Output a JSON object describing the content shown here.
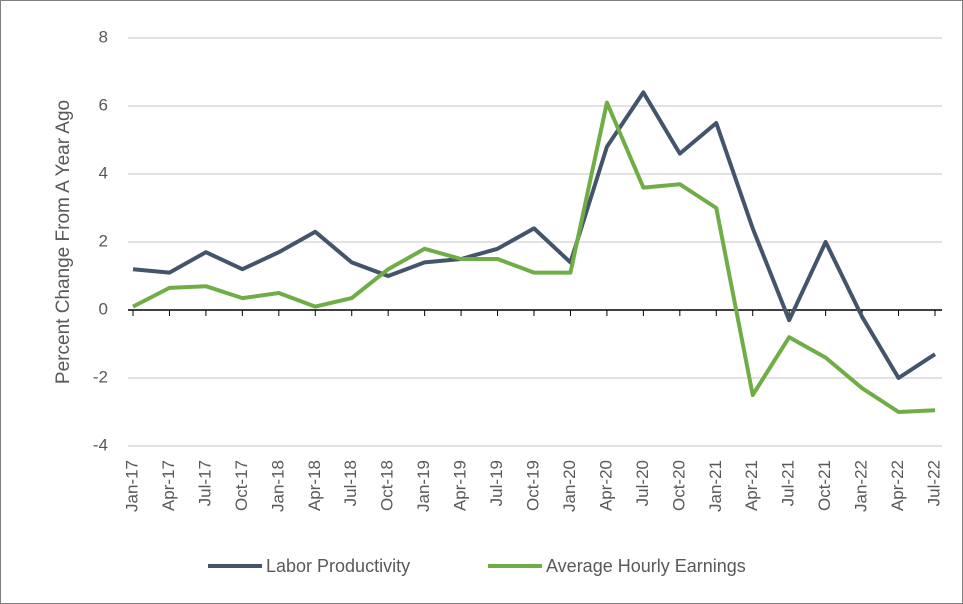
{
  "chart_data": {
    "type": "line",
    "y_label": "Percent Change From A Year Ago",
    "categories": [
      "Jan-17",
      "Apr-17",
      "Jul-17",
      "Oct-17",
      "Jan-18",
      "Apr-18",
      "Jul-18",
      "Oct-18",
      "Jan-19",
      "Apr-19",
      "Jul-19",
      "Oct-19",
      "Jan-20",
      "Apr-20",
      "Jul-20",
      "Oct-20",
      "Jan-21",
      "Apr-21",
      "Jul-21",
      "Oct-21",
      "Jan-22",
      "Apr-22",
      "Jul-22"
    ],
    "series": [
      {
        "name": "Labor Productivity",
        "color": "#44546a",
        "values": [
          1.2,
          1.1,
          1.7,
          1.2,
          1.7,
          2.3,
          1.4,
          1.0,
          1.4,
          1.5,
          1.8,
          2.4,
          1.4,
          4.8,
          6.4,
          4.6,
          5.5,
          2.4,
          -0.3,
          2.0,
          -0.2,
          -2.0,
          -1.3
        ]
      },
      {
        "name": "Average Hourly Earnings",
        "color": "#70ad47",
        "values": [
          0.1,
          0.65,
          0.7,
          0.35,
          0.5,
          0.1,
          0.35,
          1.2,
          1.8,
          1.5,
          1.5,
          1.1,
          1.1,
          6.1,
          3.6,
          3.7,
          3.0,
          -2.5,
          -0.8,
          -1.4,
          -2.3,
          -3.0,
          -2.95
        ]
      }
    ],
    "ylim": [
      -4,
      8
    ],
    "yticks": [
      -4,
      -2,
      0,
      2,
      4,
      6,
      8
    ],
    "grid": true,
    "legend": "bottom"
  }
}
